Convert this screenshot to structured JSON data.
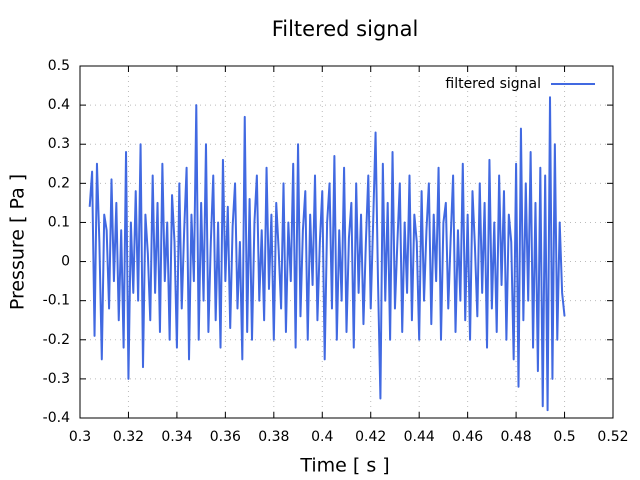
{
  "chart_data": {
    "type": "line",
    "title": "Filtered signal",
    "x_label": "Time [ s ]",
    "y_label": "Pressure [ Pa ]",
    "xlim": [
      0.3,
      0.52
    ],
    "xticks": [
      0.3,
      0.32,
      0.34,
      0.36,
      0.38,
      0.4,
      0.42,
      0.44,
      0.46,
      0.48,
      0.5,
      0.52
    ],
    "ylim": [
      -0.4,
      0.5
    ],
    "yticks": [
      -0.4,
      -0.3,
      -0.2,
      -0.1,
      0,
      0.1,
      0.2,
      0.3,
      0.4,
      0.5
    ],
    "grid": true,
    "legend": "top-right",
    "x": [
      0.304,
      0.305,
      0.306,
      0.307,
      0.308,
      0.309,
      0.31,
      0.311,
      0.312,
      0.313,
      0.314,
      0.315,
      0.316,
      0.317,
      0.318,
      0.319,
      0.32,
      0.321,
      0.322,
      0.323,
      0.324,
      0.325,
      0.326,
      0.327,
      0.328,
      0.329,
      0.33,
      0.331,
      0.332,
      0.333,
      0.334,
      0.335,
      0.336,
      0.337,
      0.338,
      0.339,
      0.34,
      0.341,
      0.342,
      0.343,
      0.344,
      0.345,
      0.346,
      0.347,
      0.348,
      0.349,
      0.35,
      0.351,
      0.352,
      0.353,
      0.354,
      0.355,
      0.356,
      0.357,
      0.358,
      0.359,
      0.36,
      0.361,
      0.362,
      0.363,
      0.364,
      0.365,
      0.366,
      0.367,
      0.368,
      0.369,
      0.37,
      0.371,
      0.372,
      0.373,
      0.374,
      0.375,
      0.376,
      0.377,
      0.378,
      0.379,
      0.38,
      0.381,
      0.382,
      0.383,
      0.384,
      0.385,
      0.386,
      0.387,
      0.388,
      0.389,
      0.39,
      0.391,
      0.392,
      0.393,
      0.394,
      0.395,
      0.396,
      0.397,
      0.398,
      0.399,
      0.4,
      0.401,
      0.402,
      0.403,
      0.404,
      0.405,
      0.406,
      0.407,
      0.408,
      0.409,
      0.41,
      0.411,
      0.412,
      0.413,
      0.414,
      0.415,
      0.416,
      0.417,
      0.418,
      0.419,
      0.42,
      0.421,
      0.422,
      0.423,
      0.424,
      0.425,
      0.426,
      0.427,
      0.428,
      0.429,
      0.43,
      0.431,
      0.432,
      0.433,
      0.434,
      0.435,
      0.436,
      0.437,
      0.438,
      0.439,
      0.44,
      0.441,
      0.442,
      0.443,
      0.444,
      0.445,
      0.446,
      0.447,
      0.448,
      0.449,
      0.45,
      0.451,
      0.452,
      0.453,
      0.454,
      0.455,
      0.456,
      0.457,
      0.458,
      0.459,
      0.46,
      0.461,
      0.462,
      0.463,
      0.464,
      0.465,
      0.466,
      0.467,
      0.468,
      0.469,
      0.47,
      0.471,
      0.472,
      0.473,
      0.474,
      0.475,
      0.476,
      0.477,
      0.478,
      0.479,
      0.48,
      0.481,
      0.482,
      0.483,
      0.484,
      0.485,
      0.486,
      0.487,
      0.488,
      0.489,
      0.49,
      0.491,
      0.492,
      0.493,
      0.494,
      0.495,
      0.496,
      0.497,
      0.498,
      0.499,
      0.5
    ],
    "series": [
      {
        "name": "filtered signal",
        "color": "#4169e1",
        "values": [
          0.14,
          0.23,
          -0.19,
          0.25,
          0.05,
          -0.25,
          0.12,
          0.08,
          -0.12,
          0.21,
          -0.05,
          0.15,
          -0.15,
          0.08,
          -0.22,
          0.28,
          -0.3,
          0.1,
          -0.08,
          0.18,
          -0.1,
          0.3,
          -0.27,
          0.12,
          0.02,
          -0.15,
          0.22,
          -0.08,
          0.15,
          -0.18,
          0.25,
          -0.05,
          0.1,
          -0.2,
          0.17,
          0.05,
          -0.22,
          0.2,
          -0.12,
          0.08,
          0.24,
          -0.25,
          0.12,
          -0.05,
          0.4,
          -0.2,
          0.15,
          -0.1,
          0.3,
          -0.18,
          0.05,
          0.22,
          -0.15,
          0.1,
          -0.22,
          0.26,
          -0.05,
          0.14,
          -0.17,
          0.09,
          0.2,
          -0.12,
          0.05,
          -0.25,
          0.37,
          -0.18,
          0.16,
          -0.2,
          0.1,
          0.22,
          -0.1,
          0.08,
          -0.15,
          0.24,
          -0.07,
          0.12,
          -0.2,
          0.15,
          0.03,
          -0.12,
          0.2,
          -0.18,
          0.1,
          -0.05,
          0.25,
          -0.22,
          0.3,
          -0.14,
          0.08,
          0.18,
          -0.2,
          0.12,
          -0.06,
          0.22,
          -0.15,
          0.05,
          0.18,
          -0.25,
          0.1,
          0.2,
          -0.12,
          0.27,
          -0.2,
          0.08,
          -0.1,
          0.24,
          -0.18,
          0.06,
          0.15,
          -0.22,
          0.2,
          -0.08,
          0.12,
          -0.16,
          0.05,
          0.22,
          -0.12,
          0.1,
          0.33,
          -0.05,
          -0.35,
          0.25,
          -0.1,
          0.15,
          -0.2,
          0.28,
          -0.12,
          0.05,
          0.2,
          -0.18,
          0.1,
          -0.08,
          0.22,
          -0.15,
          0.12,
          0.05,
          -0.2,
          0.18,
          -0.1,
          0.08,
          0.2,
          -0.16,
          0.12,
          -0.05,
          0.24,
          -0.2,
          0.1,
          0.15,
          -0.12,
          0.06,
          0.22,
          -0.18,
          0.08,
          -0.1,
          0.25,
          -0.15,
          0.12,
          -0.2,
          0.18,
          0.04,
          -0.14,
          0.2,
          -0.08,
          0.15,
          -0.22,
          0.26,
          -0.12,
          0.1,
          -0.18,
          0.22,
          -0.06,
          0.18,
          -0.2,
          0.12,
          0.05,
          -0.25,
          0.25,
          -0.32,
          0.34,
          -0.15,
          0.2,
          -0.1,
          0.28,
          -0.22,
          0.15,
          -0.28,
          0.24,
          -0.37,
          0.22,
          -0.38,
          0.42,
          -0.3,
          0.3,
          -0.2,
          0.1,
          -0.08,
          -0.14
        ]
      }
    ]
  }
}
